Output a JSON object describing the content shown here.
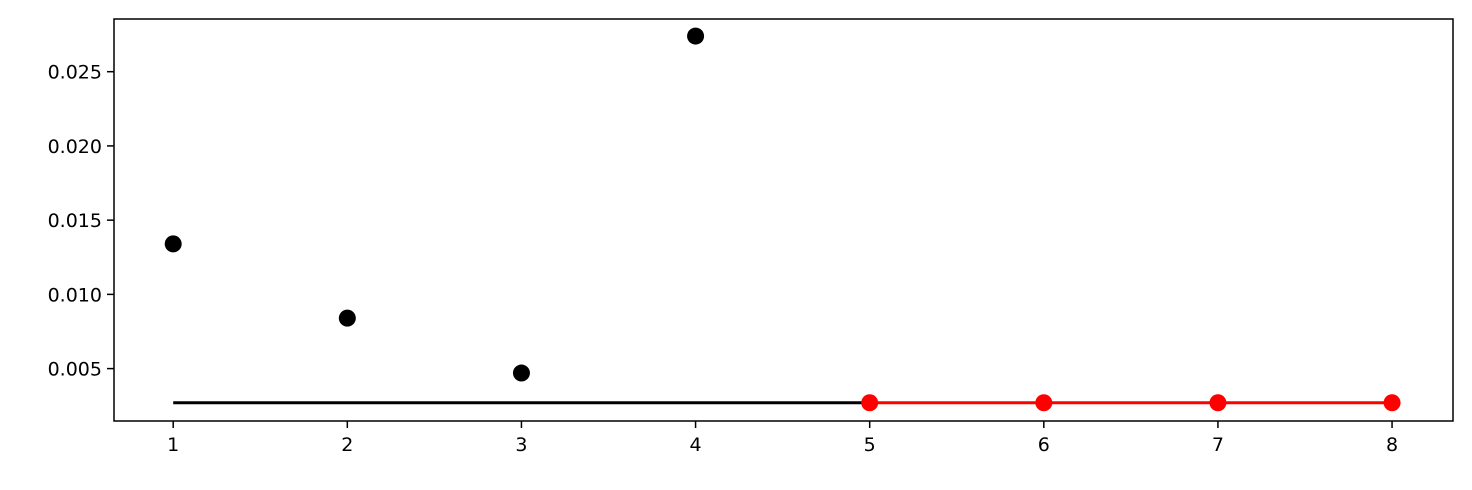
{
  "chart_data": {
    "type": "scatter",
    "title": "",
    "xlabel": "",
    "ylabel": "",
    "xlim": [
      0.66,
      8.35
    ],
    "ylim": [
      0.00147,
      0.02855
    ],
    "grid": false,
    "x_ticks": [
      1,
      2,
      3,
      4,
      5,
      6,
      7,
      8
    ],
    "x_tick_labels": [
      "1",
      "2",
      "3",
      "4",
      "5",
      "6",
      "7",
      "8"
    ],
    "y_ticks": [
      0.005,
      0.01,
      0.015,
      0.02,
      0.025
    ],
    "y_tick_labels": [
      "0.005",
      "0.010",
      "0.015",
      "0.020",
      "0.025"
    ],
    "series": [
      {
        "kind": "scatter",
        "color": "#000000",
        "points": [
          {
            "x": 1,
            "y": 0.0134
          },
          {
            "x": 2,
            "y": 0.0084
          },
          {
            "x": 3,
            "y": 0.0047
          },
          {
            "x": 4,
            "y": 0.0274
          }
        ]
      },
      {
        "kind": "line",
        "color": "#000000",
        "points": [
          {
            "x": 1,
            "y": 0.0027
          },
          {
            "x": 5,
            "y": 0.0027
          }
        ]
      },
      {
        "kind": "line-markers",
        "color": "#ff0000",
        "points": [
          {
            "x": 5,
            "y": 0.0027
          },
          {
            "x": 6,
            "y": 0.0027
          },
          {
            "x": 7,
            "y": 0.0027
          },
          {
            "x": 8,
            "y": 0.0027
          }
        ]
      }
    ]
  }
}
